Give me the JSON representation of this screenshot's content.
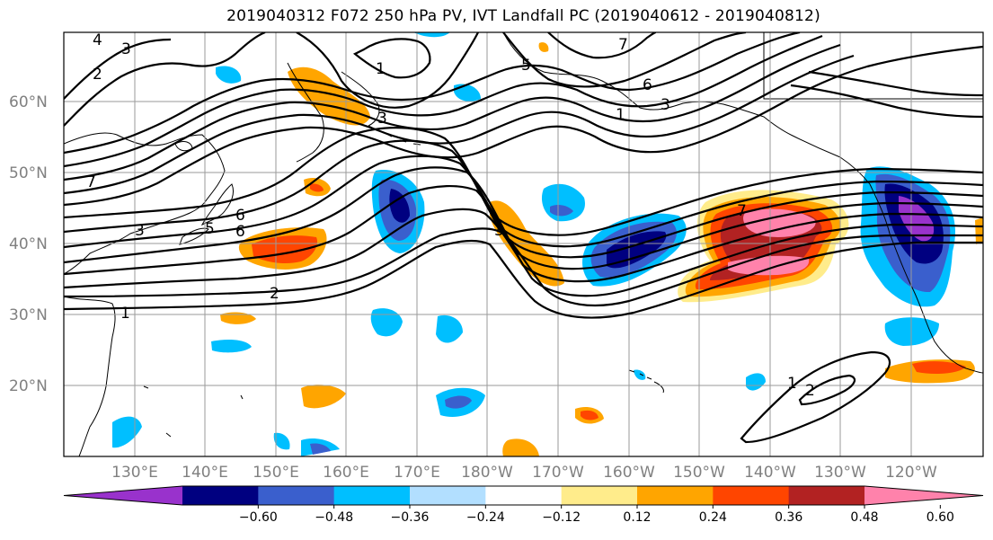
{
  "title": "2019040312 F072 250 hPa PV, IVT Landfall PC (2019040612 - 2019040812)",
  "lat_labels": [
    "60°N",
    "50°N",
    "40°N",
    "30°N",
    "20°N"
  ],
  "lon_labels": [
    "130°E",
    "140°E",
    "150°E",
    "160°E",
    "170°E",
    "180°W",
    "170°W",
    "160°W",
    "150°W",
    "140°W",
    "130°W",
    "120°W"
  ],
  "contour_labels": [
    "4",
    "3",
    "2",
    "7",
    "1",
    "3",
    "6",
    "5",
    "6",
    "2",
    "1",
    "7",
    "3",
    "3",
    "1",
    "7",
    "6",
    "5",
    "3",
    "1",
    "2"
  ],
  "colorbar": {
    "colors": [
      "#9932cc",
      "#000080",
      "#3a5fcd",
      "#00bfff",
      "#b2dfff",
      "#ffffff",
      "#ffec8b",
      "#ffa500",
      "#ff4500",
      "#b22222",
      "#ff82ab"
    ],
    "ticks": [
      "−0.60",
      "−0.48",
      "−0.36",
      "−0.24",
      "−0.12",
      "0.12",
      "0.24",
      "0.36",
      "0.48",
      "0.60"
    ]
  }
}
